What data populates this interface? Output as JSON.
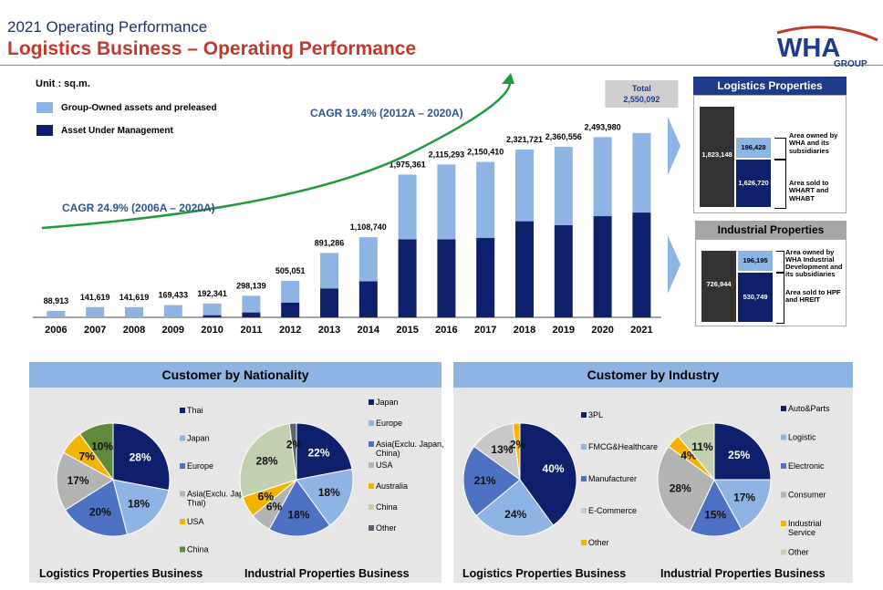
{
  "header": {
    "supertitle": "2021 Operating Performance",
    "title": "Logistics Business – Operating Performance",
    "logo_text": "WHA",
    "logo_sub": "GROUP"
  },
  "colors": {
    "navy": "#0e1f6b",
    "light_blue": "#8eb4e3",
    "green": "#1f9a3c",
    "grey_panel": "#7f7f7f",
    "accent_red": "#c0392b"
  },
  "unit": "Unit : sq.m.",
  "chart_data": [
    {
      "type": "bar",
      "categories": [
        "2006",
        "2007",
        "2008",
        "2009",
        "2010",
        "2011",
        "2012",
        "2013",
        "2014",
        "2015",
        "2016",
        "2017",
        "2018",
        "2019",
        "2020",
        "2021"
      ],
      "series": [
        {
          "name": "Group-Owned assets and preleased",
          "values": [
            88913,
            141619,
            141619,
            169433,
            162341,
            230139,
            300051,
            491286,
            608740,
            895361,
            1035293,
            1050410,
            991721,
            1085556,
            1093980,
            1100000
          ]
        },
        {
          "name": "Asset Under Management",
          "values": [
            0,
            0,
            0,
            0,
            30000,
            68000,
            205000,
            400000,
            500000,
            1080000,
            1080000,
            1100000,
            1330000,
            1275000,
            1400000,
            1450092
          ]
        }
      ],
      "totals_labels": [
        "88,913",
        "141,619",
        "141,619",
        "169,433",
        "192,341",
        "298,139",
        "505,051",
        "891,286",
        "1,108,740",
        "1,975,361",
        "2,115,293",
        "2,150,410",
        "2,321,721",
        "2,360,556",
        "2,493,980",
        ""
      ],
      "total_box": {
        "label": "Total",
        "value": "2,550,092"
      },
      "cagr_labels": [
        "CAGR 24.9% (2006A – 2020A)",
        "CAGR 19.4% (2012A – 2020A)"
      ],
      "ylim": [
        0,
        2650000
      ]
    },
    {
      "type": "pie",
      "title": "Logistics Properties Business",
      "labels": [
        "Thai",
        "Japan",
        "Europe",
        "Asia(Exclu. Japan, Thai)",
        "USA",
        "China"
      ],
      "values": [
        28,
        18,
        20,
        17,
        7,
        10
      ],
      "colors": [
        "#0e1f6b",
        "#8eb4e3",
        "#4d72c4",
        "#b4b4b4",
        "#f2b400",
        "#5f8a3a"
      ]
    },
    {
      "type": "pie",
      "title": "Industrial Properties Business",
      "labels": [
        "Japan",
        "Europe",
        "Asia(Exclu. Japan, China)",
        "USA",
        "Australia",
        "China",
        "Other"
      ],
      "values": [
        22,
        18,
        18,
        6,
        6,
        28,
        2
      ],
      "colors": [
        "#0e1f6b",
        "#8eb4e3",
        "#4d72c4",
        "#b4b4b4",
        "#f2b400",
        "#c3d0b0",
        "#606070"
      ]
    },
    {
      "type": "pie",
      "title": "Logistics Properties Business",
      "labels": [
        "3PL",
        "FMCG&Healthcare",
        "Manufacturer",
        "E-Commerce",
        "Other"
      ],
      "values": [
        40,
        24,
        21,
        13,
        2
      ],
      "colors": [
        "#0e1f6b",
        "#8eb4e3",
        "#4d72c4",
        "#c8c8c8",
        "#f2b400"
      ]
    },
    {
      "type": "pie",
      "title": "Industrial Properties Business",
      "labels": [
        "Auto&Parts",
        "Logistic",
        "Electronic",
        "Consumer",
        "Industrial Service",
        "Other"
      ],
      "values": [
        25,
        17,
        15,
        28,
        4,
        11
      ],
      "colors": [
        "#0e1f6b",
        "#8eb4e3",
        "#4d72c4",
        "#b4b4b4",
        "#f2b400",
        "#c3d0b0"
      ]
    }
  ],
  "sections": {
    "nationality": "Customer by Nationality",
    "industry": "Customer by Industry"
  },
  "pie_value_labels": [
    [
      "28%",
      "18%",
      "20%",
      "17%",
      "7%",
      "10%"
    ],
    [
      "22%",
      "18%",
      "18%",
      "6%",
      "6%",
      "28%",
      "2%"
    ],
    [
      "40%",
      "24%",
      "21%",
      "13%",
      "2%"
    ],
    [
      "25%",
      "17%",
      "15%",
      "28%",
      "4%",
      "11%"
    ]
  ],
  "panels": {
    "logistics": {
      "title": "Logistics Properties",
      "total": "1,823,148",
      "owned": "196,428",
      "sold": "1,626,720",
      "owned_note": "Area owned by WHA and its subsidiaries",
      "sold_note": "Area sold to WHART and WHABT"
    },
    "industrial": {
      "title": "Industrial Properties",
      "total": "726,944",
      "owned": "196,195",
      "sold": "530,749",
      "owned_note": "Area owned by WHA Industrial Development and its subsidiaries",
      "sold_note": "Area sold to HPF and HREIT"
    }
  }
}
